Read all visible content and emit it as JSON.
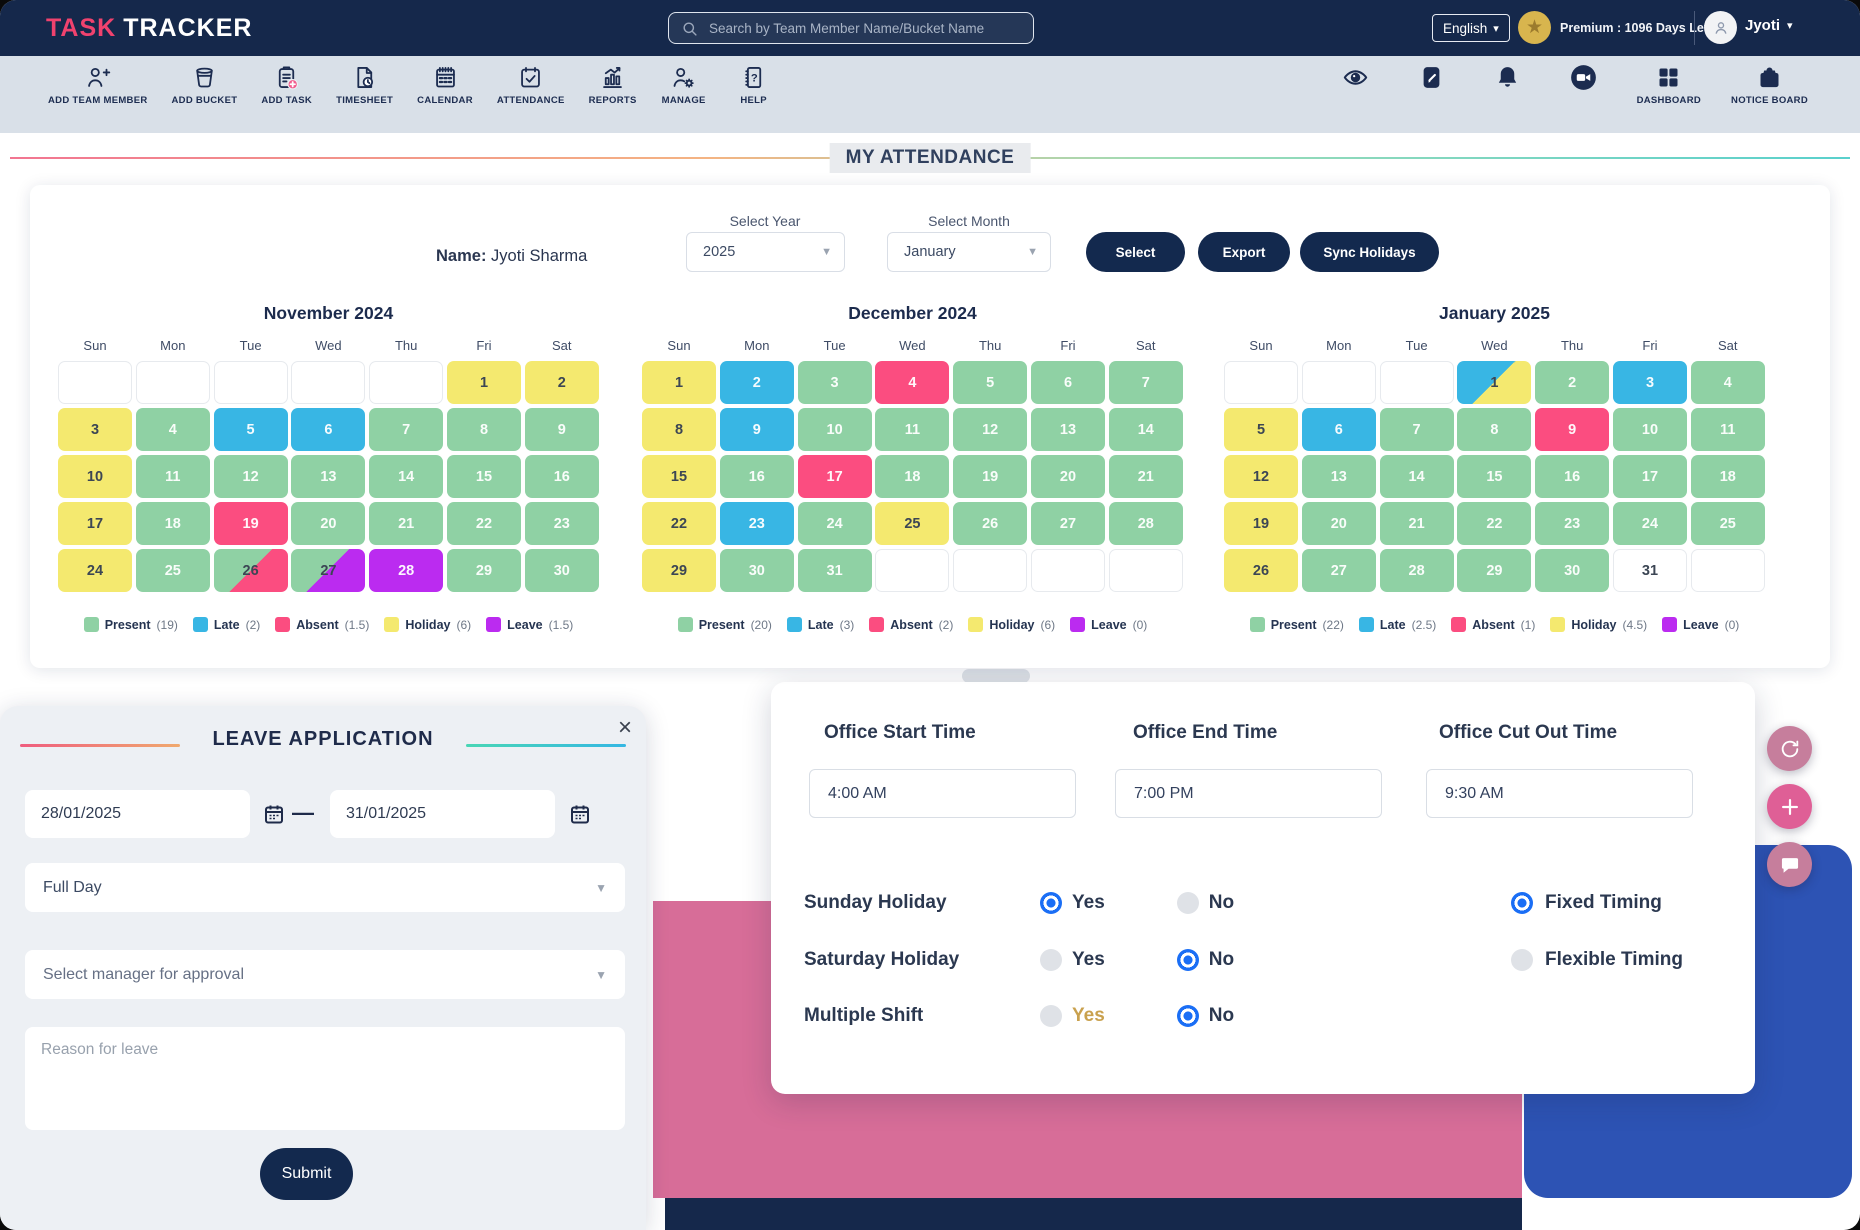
{
  "colors": {
    "present": "#8fd1a4",
    "late": "#38b6e4",
    "absent": "#fb4d80",
    "holiday": "#f4e96f",
    "leave": "#bb2bf0",
    "navy": "#15284b",
    "radio_blue": "#1a6ef5",
    "gold": "#c9a14e",
    "pink_decor": "#d76d98",
    "blue_decor": "#2d53b4"
  },
  "navbar": {
    "logo_primary": "TASK",
    "logo_secondary": "TRACKER",
    "search_placeholder": "Search by Team Member Name/Bucket Name",
    "language": "English",
    "premium": "Premium : 1096 Days Left",
    "user": "Jyoti"
  },
  "toolbar": {
    "left": [
      {
        "label": "ADD TEAM MEMBER",
        "icon": "add-team-member-icon"
      },
      {
        "label": "ADD BUCKET",
        "icon": "add-bucket-icon"
      },
      {
        "label": "ADD TASK",
        "icon": "add-task-icon"
      },
      {
        "label": "TIMESHEET",
        "icon": "timesheet-icon"
      },
      {
        "label": "CALENDAR",
        "icon": "calendar-icon"
      },
      {
        "label": "ATTENDANCE",
        "icon": "attendance-icon"
      },
      {
        "label": "REPORTS",
        "icon": "reports-icon"
      },
      {
        "label": "MANAGE",
        "icon": "manage-icon"
      },
      {
        "label": "HELP",
        "icon": "help-icon"
      }
    ],
    "right": [
      {
        "label": "",
        "icon": "eye-icon"
      },
      {
        "label": "",
        "icon": "edit-icon"
      },
      {
        "label": "",
        "icon": "bell-icon"
      },
      {
        "label": "",
        "icon": "video-icon"
      },
      {
        "label": "DASHBOARD",
        "icon": "dashboard-icon"
      },
      {
        "label": "NOTICE BOARD",
        "icon": "notice-board-icon"
      }
    ]
  },
  "page_title": "MY ATTENDANCE",
  "controls": {
    "name_label": "Name:",
    "name_value": "Jyoti Sharma",
    "year_label": "Select Year",
    "year_value": "2025",
    "month_label": "Select Month",
    "month_value": "January",
    "select_button": "Select",
    "export_button": "Export",
    "sync_button": "Sync Holidays"
  },
  "weekdays": [
    "Sun",
    "Mon",
    "Tue",
    "Wed",
    "Thu",
    "Fri",
    "Sat"
  ],
  "months": [
    {
      "title": "November 2024",
      "cells": [
        {
          "d": "",
          "s": "none"
        },
        {
          "d": "",
          "s": "none"
        },
        {
          "d": "",
          "s": "none"
        },
        {
          "d": "",
          "s": "none"
        },
        {
          "d": "",
          "s": "none"
        },
        {
          "d": "1",
          "s": "holiday"
        },
        {
          "d": "2",
          "s": "holiday"
        },
        {
          "d": "3",
          "s": "holiday"
        },
        {
          "d": "4",
          "s": "present"
        },
        {
          "d": "5",
          "s": "late"
        },
        {
          "d": "6",
          "s": "late"
        },
        {
          "d": "7",
          "s": "present"
        },
        {
          "d": "8",
          "s": "present"
        },
        {
          "d": "9",
          "s": "present"
        },
        {
          "d": "10",
          "s": "holiday"
        },
        {
          "d": "11",
          "s": "present"
        },
        {
          "d": "12",
          "s": "present"
        },
        {
          "d": "13",
          "s": "present"
        },
        {
          "d": "14",
          "s": "present"
        },
        {
          "d": "15",
          "s": "present"
        },
        {
          "d": "16",
          "s": "present"
        },
        {
          "d": "17",
          "s": "holiday"
        },
        {
          "d": "18",
          "s": "present"
        },
        {
          "d": "19",
          "s": "absent"
        },
        {
          "d": "20",
          "s": "present"
        },
        {
          "d": "21",
          "s": "present"
        },
        {
          "d": "22",
          "s": "present"
        },
        {
          "d": "23",
          "s": "present"
        },
        {
          "d": "24",
          "s": "holiday"
        },
        {
          "d": "25",
          "s": "present"
        },
        {
          "d": "26",
          "s": "present/absent"
        },
        {
          "d": "27",
          "s": "present/leave"
        },
        {
          "d": "28",
          "s": "leave"
        },
        {
          "d": "29",
          "s": "present"
        },
        {
          "d": "30",
          "s": "present"
        }
      ],
      "legend": [
        {
          "label": "Present",
          "count": "(19)",
          "s": "present"
        },
        {
          "label": "Late",
          "count": "(2)",
          "s": "late"
        },
        {
          "label": "Absent",
          "count": "(1.5)",
          "s": "absent"
        },
        {
          "label": "Holiday",
          "count": "(6)",
          "s": "holiday"
        },
        {
          "label": "Leave",
          "count": "(1.5)",
          "s": "leave"
        }
      ]
    },
    {
      "title": "December 2024",
      "cells": [
        {
          "d": "1",
          "s": "holiday"
        },
        {
          "d": "2",
          "s": "late"
        },
        {
          "d": "3",
          "s": "present"
        },
        {
          "d": "4",
          "s": "absent"
        },
        {
          "d": "5",
          "s": "present"
        },
        {
          "d": "6",
          "s": "present"
        },
        {
          "d": "7",
          "s": "present"
        },
        {
          "d": "8",
          "s": "holiday"
        },
        {
          "d": "9",
          "s": "late"
        },
        {
          "d": "10",
          "s": "present"
        },
        {
          "d": "11",
          "s": "present"
        },
        {
          "d": "12",
          "s": "present"
        },
        {
          "d": "13",
          "s": "present"
        },
        {
          "d": "14",
          "s": "present"
        },
        {
          "d": "15",
          "s": "holiday"
        },
        {
          "d": "16",
          "s": "present"
        },
        {
          "d": "17",
          "s": "absent"
        },
        {
          "d": "18",
          "s": "present"
        },
        {
          "d": "19",
          "s": "present"
        },
        {
          "d": "20",
          "s": "present"
        },
        {
          "d": "21",
          "s": "present"
        },
        {
          "d": "22",
          "s": "holiday"
        },
        {
          "d": "23",
          "s": "late"
        },
        {
          "d": "24",
          "s": "present"
        },
        {
          "d": "25",
          "s": "holiday"
        },
        {
          "d": "26",
          "s": "present"
        },
        {
          "d": "27",
          "s": "present"
        },
        {
          "d": "28",
          "s": "present"
        },
        {
          "d": "29",
          "s": "holiday"
        },
        {
          "d": "30",
          "s": "present"
        },
        {
          "d": "31",
          "s": "present"
        },
        {
          "d": "",
          "s": "none"
        },
        {
          "d": "",
          "s": "none"
        },
        {
          "d": "",
          "s": "none"
        },
        {
          "d": "",
          "s": "none"
        }
      ],
      "legend": [
        {
          "label": "Present",
          "count": "(20)",
          "s": "present"
        },
        {
          "label": "Late",
          "count": "(3)",
          "s": "late"
        },
        {
          "label": "Absent",
          "count": "(2)",
          "s": "absent"
        },
        {
          "label": "Holiday",
          "count": "(6)",
          "s": "holiday"
        },
        {
          "label": "Leave",
          "count": "(0)",
          "s": "leave"
        }
      ]
    },
    {
      "title": "January 2025",
      "cells": [
        {
          "d": "",
          "s": "none"
        },
        {
          "d": "",
          "s": "none"
        },
        {
          "d": "",
          "s": "none"
        },
        {
          "d": "1",
          "s": "late/holiday"
        },
        {
          "d": "2",
          "s": "present"
        },
        {
          "d": "3",
          "s": "late"
        },
        {
          "d": "4",
          "s": "present"
        },
        {
          "d": "5",
          "s": "holiday"
        },
        {
          "d": "6",
          "s": "late"
        },
        {
          "d": "7",
          "s": "present"
        },
        {
          "d": "8",
          "s": "present"
        },
        {
          "d": "9",
          "s": "absent"
        },
        {
          "d": "10",
          "s": "present"
        },
        {
          "d": "11",
          "s": "present"
        },
        {
          "d": "12",
          "s": "holiday"
        },
        {
          "d": "13",
          "s": "present"
        },
        {
          "d": "14",
          "s": "present"
        },
        {
          "d": "15",
          "s": "present"
        },
        {
          "d": "16",
          "s": "present"
        },
        {
          "d": "17",
          "s": "present"
        },
        {
          "d": "18",
          "s": "present"
        },
        {
          "d": "19",
          "s": "holiday"
        },
        {
          "d": "20",
          "s": "present"
        },
        {
          "d": "21",
          "s": "present"
        },
        {
          "d": "22",
          "s": "present"
        },
        {
          "d": "23",
          "s": "present"
        },
        {
          "d": "24",
          "s": "present"
        },
        {
          "d": "25",
          "s": "present"
        },
        {
          "d": "26",
          "s": "holiday"
        },
        {
          "d": "27",
          "s": "present"
        },
        {
          "d": "28",
          "s": "present"
        },
        {
          "d": "29",
          "s": "present"
        },
        {
          "d": "30",
          "s": "present"
        },
        {
          "d": "31",
          "s": "plain"
        },
        {
          "d": "",
          "s": "none"
        }
      ],
      "legend": [
        {
          "label": "Present",
          "count": "(22)",
          "s": "present"
        },
        {
          "label": "Late",
          "count": "(2.5)",
          "s": "late"
        },
        {
          "label": "Absent",
          "count": "(1)",
          "s": "absent"
        },
        {
          "label": "Holiday",
          "count": "(4.5)",
          "s": "holiday"
        },
        {
          "label": "Leave",
          "count": "(0)",
          "s": "leave"
        }
      ]
    }
  ],
  "leave_form": {
    "title": "LEAVE APPLICATION",
    "close": "×",
    "date_from": "28/01/2025",
    "date_to": "31/01/2025",
    "day_type": "Full Day",
    "manager_placeholder": "Select manager for approval",
    "reason_placeholder": "Reason for leave",
    "submit": "Submit"
  },
  "office_panel": {
    "fields": [
      {
        "label": "Office Start Time",
        "value": "4:00 AM"
      },
      {
        "label": "Office End Time",
        "value": "7:00 PM"
      },
      {
        "label": "Office Cut Out Time",
        "value": "9:30 AM"
      }
    ],
    "yes_label": "Yes",
    "no_label": "No",
    "radios": [
      {
        "label": "Sunday Holiday",
        "yes_selected": true,
        "yes_gold": false
      },
      {
        "label": "Saturday Holiday",
        "yes_selected": false,
        "yes_gold": false
      },
      {
        "label": "Multiple Shift",
        "yes_selected": false,
        "yes_gold": true
      }
    ],
    "timing": [
      {
        "label": "Fixed Timing",
        "selected": true
      },
      {
        "label": "Flexible Timing",
        "selected": false
      }
    ]
  },
  "fabs": [
    {
      "icon": "sync-user-icon",
      "color": "#c67e9c"
    },
    {
      "icon": "plus-icon",
      "color": "#df5f96"
    },
    {
      "icon": "chat-icon",
      "color": "#c67e9c"
    }
  ]
}
